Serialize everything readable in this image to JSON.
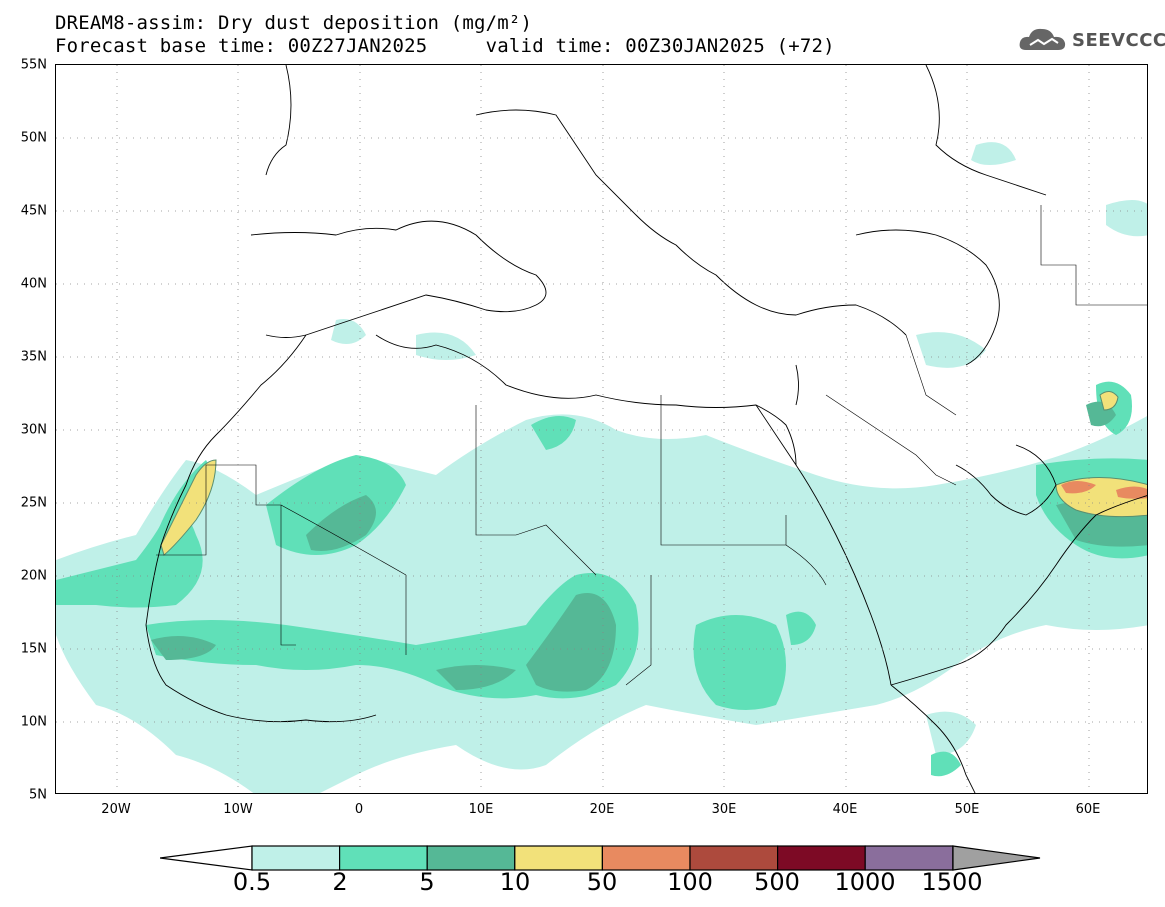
{
  "title": {
    "line1": "DREAM8-assim: Dry dust deposition (mg/m²)",
    "line2": "Forecast base time: 00Z27JAN2025     valid time: 00Z30JAN2025 (+72)"
  },
  "logo": {
    "text": "SEEVCCC",
    "icon": "cloud-icon"
  },
  "map": {
    "lon_range": [
      -25,
      65
    ],
    "lat_range": [
      5,
      55
    ],
    "lat_ticks": [
      "55N",
      "50N",
      "45N",
      "40N",
      "35N",
      "30N",
      "25N",
      "20N",
      "15N",
      "10N",
      "5N"
    ],
    "lon_ticks": [
      "20W",
      "10W",
      "0",
      "10E",
      "20E",
      "30E",
      "40E",
      "50E",
      "60E"
    ],
    "grid": true
  },
  "colorbar": {
    "labels": [
      "0.5",
      "2",
      "5",
      "10",
      "50",
      "100",
      "500",
      "1000",
      "1500"
    ],
    "colors": [
      "#bff0e8",
      "#60e0b8",
      "#55b896",
      "#f2e17a",
      "#e88a60",
      "#ad4a3d",
      "#7d0a25",
      "#8a6e9c",
      "#a0a0a0"
    ]
  }
}
